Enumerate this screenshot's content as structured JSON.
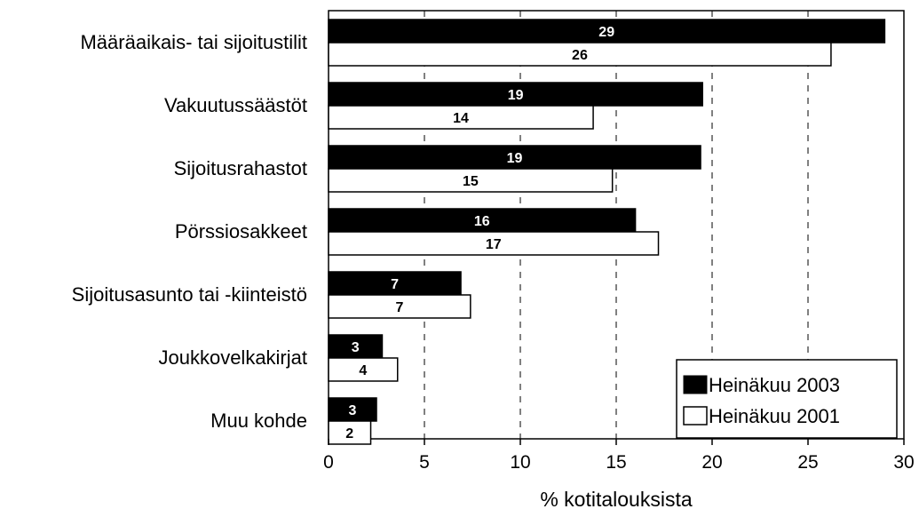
{
  "chart_data": {
    "type": "bar",
    "orientation": "horizontal",
    "categories": [
      "Määräaikais- tai sijoitustilit",
      "Vakuutussäästöt",
      "Sijoitusrahastot",
      "Pörssiosakkeet",
      "Sijoitusasunto tai -kiinteistö",
      "Joukkovelkakirjat",
      "Muu kohde"
    ],
    "series": [
      {
        "name": "Heinäkuu 2003",
        "color": "#000000",
        "values": [
          29,
          19.5,
          19.4,
          16,
          6.9,
          2.8,
          2.5
        ],
        "labels": [
          "29",
          "19",
          "19",
          "16",
          "7",
          "3",
          "3"
        ]
      },
      {
        "name": "Heinäkuu 2001",
        "color": "#ffffff",
        "values": [
          26.2,
          13.8,
          14.8,
          17.2,
          7.4,
          3.6,
          2.2
        ],
        "labels": [
          "26",
          "14",
          "15",
          "17",
          "7",
          "4",
          "2"
        ]
      }
    ],
    "xlabel": "% kotitalouksista",
    "xlim": [
      0,
      30
    ],
    "xticks": [
      "0",
      "5",
      "10",
      "15",
      "20",
      "25",
      "30"
    ],
    "grid": "vertical dashed",
    "legend_position": "bottom-right"
  }
}
